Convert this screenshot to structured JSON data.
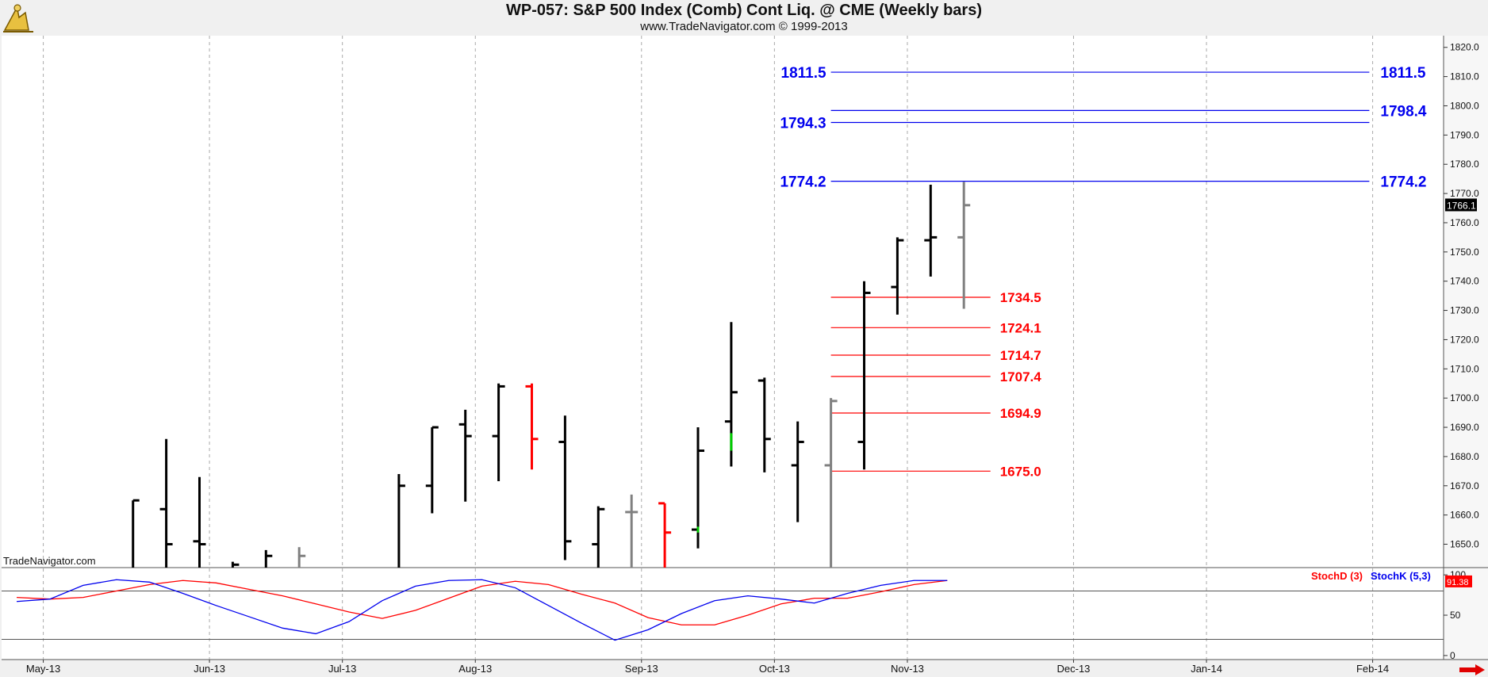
{
  "header": {
    "title": "WP-057:  S&P 500 Index (Comb) Cont Liq. @ CME  (Weekly bars)",
    "subtitle": "www.TradeNavigator.com © 1999-2013",
    "watermark": "TradeNavigator.com"
  },
  "colors": {
    "blue_levels": "#0000ee",
    "red_levels": "#ff0000",
    "bar_default": "#000000",
    "bar_gray": "#808080",
    "bar_red": "#ff0000",
    "bar_green": "#00cc00",
    "stochD": "#ff0000",
    "stochK": "#0000ee"
  },
  "chart_data": [
    {
      "type": "ohlc",
      "name": "price",
      "ylim": [
        1642,
        1824
      ],
      "yticks": [
        "1650.0",
        "1660.0",
        "1670.0",
        "1680.0",
        "1690.0",
        "1700.0",
        "1710.0",
        "1720.0",
        "1730.0",
        "1740.0",
        "1750.0",
        "1760.0",
        "1770.0",
        "1780.0",
        "1790.0",
        "1800.0",
        "1810.0",
        "1820.0"
      ],
      "xticks": [
        {
          "label": "May-13",
          "w": 0.3
        },
        {
          "label": "Jun-13",
          "w": 5.3
        },
        {
          "label": "Jul-13",
          "w": 9.3
        },
        {
          "label": "Aug-13",
          "w": 13.3
        },
        {
          "label": "Sep-13",
          "w": 18.3
        },
        {
          "label": "Oct-13",
          "w": 22.3
        },
        {
          "label": "Nov-13",
          "w": 26.3
        },
        {
          "label": "Dec-13",
          "w": 31.3
        },
        {
          "label": "Jan-14",
          "w": 35.3
        },
        {
          "label": "Feb-14",
          "w": 40.3
        }
      ],
      "last_price": "1766.1",
      "bars": [
        {
          "w": 3,
          "o": 1641,
          "h": 1665,
          "l": 1641,
          "c": 1665,
          "color": "black"
        },
        {
          "w": 4,
          "o": 1662,
          "h": 1686,
          "l": 1641,
          "c": 1650,
          "color": "black"
        },
        {
          "w": 5,
          "o": 1651,
          "h": 1673,
          "l": 1641,
          "c": 1650,
          "color": "black"
        },
        {
          "w": 6,
          "o": 1641,
          "h": 1644,
          "l": 1641,
          "c": 1643,
          "color": "black"
        },
        {
          "w": 7,
          "o": 1641,
          "h": 1648,
          "l": 1641,
          "c": 1646,
          "color": "black"
        },
        {
          "w": 8,
          "o": 1641,
          "h": 1649,
          "l": 1641,
          "c": 1646,
          "color": "gray"
        },
        {
          "w": 11,
          "o": 1641,
          "h": 1674,
          "l": 1641,
          "c": 1670,
          "color": "black"
        },
        {
          "w": 12,
          "o": 1670,
          "h": 1690,
          "l": 1666,
          "c": 1690,
          "color": "black"
        },
        {
          "w": 13,
          "o": 1691,
          "h": 1696,
          "l": 1670,
          "c": 1687,
          "color": "black"
        },
        {
          "w": 14,
          "o": 1687,
          "h": 1705,
          "l": 1677,
          "c": 1704,
          "color": "black"
        },
        {
          "w": 15,
          "o": 1704,
          "h": 1705,
          "l": 1681,
          "c": 1686,
          "color": "red"
        },
        {
          "w": 16,
          "o": 1685,
          "h": 1694,
          "l": 1650,
          "c": 1651,
          "color": "black"
        },
        {
          "w": 17,
          "o": 1650,
          "h": 1663,
          "l": 1641,
          "c": 1662,
          "color": "black"
        },
        {
          "w": 18,
          "o": 1661,
          "h": 1667,
          "l": 1641,
          "c": 1661,
          "color": "gray"
        },
        {
          "w": 19,
          "o": 1664,
          "h": 1664,
          "l": 1641,
          "c": 1654,
          "color": "red"
        },
        {
          "w": 20,
          "o": 1655,
          "h": 1690,
          "l": 1654,
          "c": 1682,
          "color": "black"
        },
        {
          "w": 21,
          "o": 1692,
          "h": 1726,
          "l": 1682,
          "c": 1702,
          "color": "black"
        },
        {
          "w": 22,
          "o": 1706,
          "h": 1707,
          "l": 1680,
          "c": 1686,
          "color": "black"
        },
        {
          "w": 23,
          "o": 1677,
          "h": 1692,
          "l": 1663,
          "c": 1685,
          "color": "black"
        },
        {
          "w": 24,
          "o": 1677,
          "h": 1700,
          "l": 1641,
          "c": 1699,
          "color": "gray"
        },
        {
          "w": 25,
          "o": 1685,
          "h": 1740,
          "l": 1681,
          "c": 1736,
          "color": "black"
        },
        {
          "w": 26,
          "o": 1738,
          "h": 1755,
          "l": 1734,
          "c": 1754,
          "color": "black"
        },
        {
          "w": 27,
          "o": 1754,
          "h": 1773,
          "l": 1747,
          "c": 1755,
          "color": "black"
        },
        {
          "w": 28,
          "o": 1755,
          "h": 1774,
          "l": 1736,
          "c": 1766,
          "color": "gray"
        }
      ],
      "levels_blue": [
        {
          "value": 1811.5,
          "label_left": "1811.5",
          "label_right": "1811.5",
          "from_w": 24,
          "to_w": 40.2
        },
        {
          "value": 1798.4,
          "label_left": "",
          "label_right": "1798.4",
          "from_w": 24,
          "to_w": 40.2
        },
        {
          "value": 1794.3,
          "label_left": "1794.3",
          "label_right": "",
          "from_w": 24,
          "to_w": 40.2
        },
        {
          "value": 1774.2,
          "label_left": "1774.2",
          "label_right": "1774.2",
          "from_w": 24,
          "to_w": 40.2
        }
      ],
      "levels_red": [
        {
          "value": 1734.5,
          "label": "1734.5"
        },
        {
          "value": 1724.1,
          "label": "1724.1"
        },
        {
          "value": 1714.7,
          "label": "1714.7"
        },
        {
          "value": 1707.4,
          "label": "1707.4"
        },
        {
          "value": 1694.9,
          "label": "1694.9"
        },
        {
          "value": 1675.0,
          "label": "1675.0"
        }
      ]
    },
    {
      "type": "line",
      "name": "stochastic",
      "ylim": [
        -5,
        108
      ],
      "yticks": [
        "0",
        "50",
        "100"
      ],
      "hlines": [
        20,
        80
      ],
      "legend": [
        "StochD (3)",
        "StochK (5,3)"
      ],
      "last_value": "91.38",
      "series": [
        {
          "name": "StochD (3)",
          "color": "red",
          "x": [
            0,
            1,
            2,
            3,
            4,
            5,
            6,
            7,
            8,
            9,
            10,
            11,
            12,
            13,
            14,
            15,
            16,
            17,
            18,
            19,
            20,
            21,
            22,
            23,
            24,
            25,
            26,
            27,
            28
          ],
          "values": [
            72,
            70,
            72,
            80,
            88,
            93,
            90,
            82,
            74,
            64,
            54,
            46,
            56,
            71,
            86,
            92,
            88,
            76,
            65,
            47,
            38,
            38,
            50,
            64,
            71,
            71,
            79,
            88,
            93
          ]
        },
        {
          "name": "StochK (5,3)",
          "color": "blue",
          "x": [
            0,
            1,
            2,
            3,
            4,
            5,
            6,
            7,
            8,
            9,
            10,
            11,
            12,
            13,
            14,
            15,
            16,
            17,
            18,
            19,
            20,
            21,
            22,
            23,
            24,
            25,
            26,
            27,
            28
          ],
          "values": [
            67,
            70,
            87,
            94,
            91,
            77,
            62,
            48,
            34,
            27,
            42,
            68,
            86,
            93,
            94,
            84,
            62,
            40,
            19,
            32,
            52,
            68,
            74,
            70,
            65,
            77,
            87,
            93,
            93
          ]
        }
      ]
    }
  ]
}
